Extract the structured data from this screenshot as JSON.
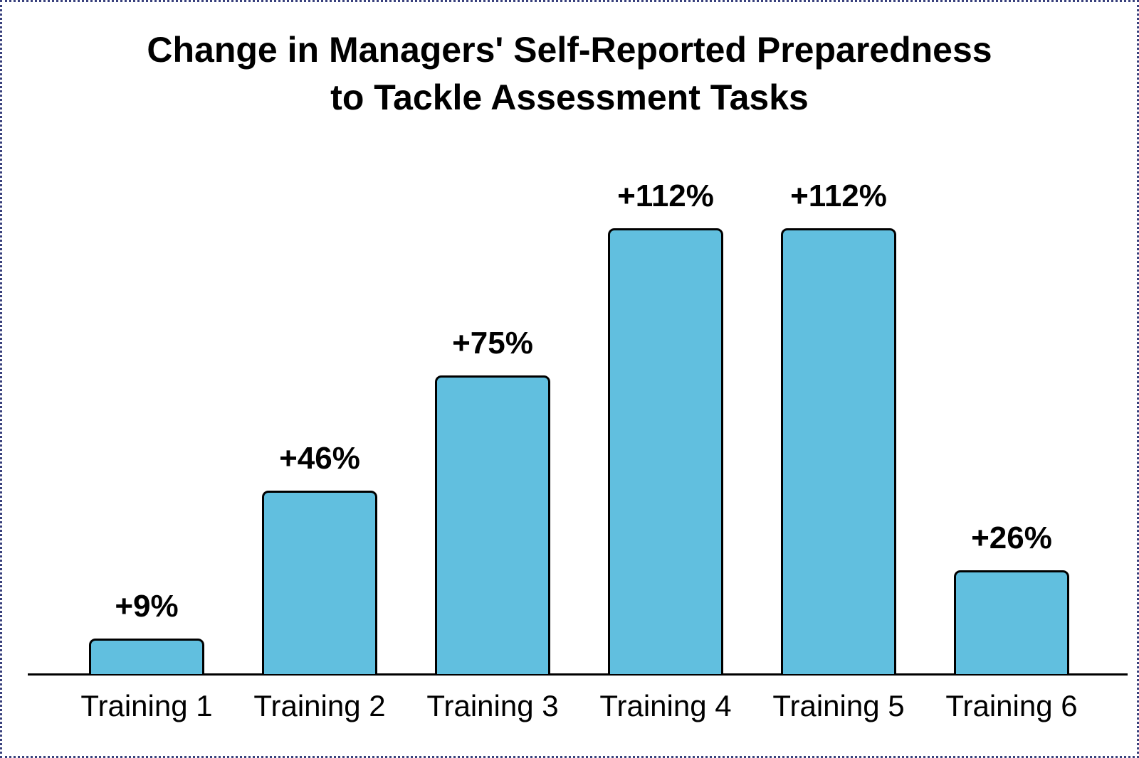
{
  "chart_data": {
    "type": "bar",
    "title": "Change in Managers' Self-Reported Preparedness to Tackle Assessment Tasks",
    "title_lines": [
      "Change in Managers' Self-Reported Preparedness",
      "to Tackle Assessment Tasks"
    ],
    "categories": [
      "Training 1",
      "Training 2",
      "Training 3",
      "Training 4",
      "Training 5",
      "Training 6"
    ],
    "values": [
      9,
      46,
      75,
      112,
      112,
      26
    ],
    "value_labels": [
      "+9%",
      "+46%",
      "+75%",
      "+112%",
      "+112%",
      "+26%"
    ],
    "xlabel": "",
    "ylabel": "",
    "ylim": [
      0,
      120
    ],
    "grid": false,
    "legend": null,
    "y_axis_visible": false,
    "bar_color": "#61bfdf",
    "bar_border_color": "#000000",
    "axis_color": "#000000",
    "label_color": "#000000",
    "frame_border_color": "#39417d",
    "background": "#ffffff"
  }
}
